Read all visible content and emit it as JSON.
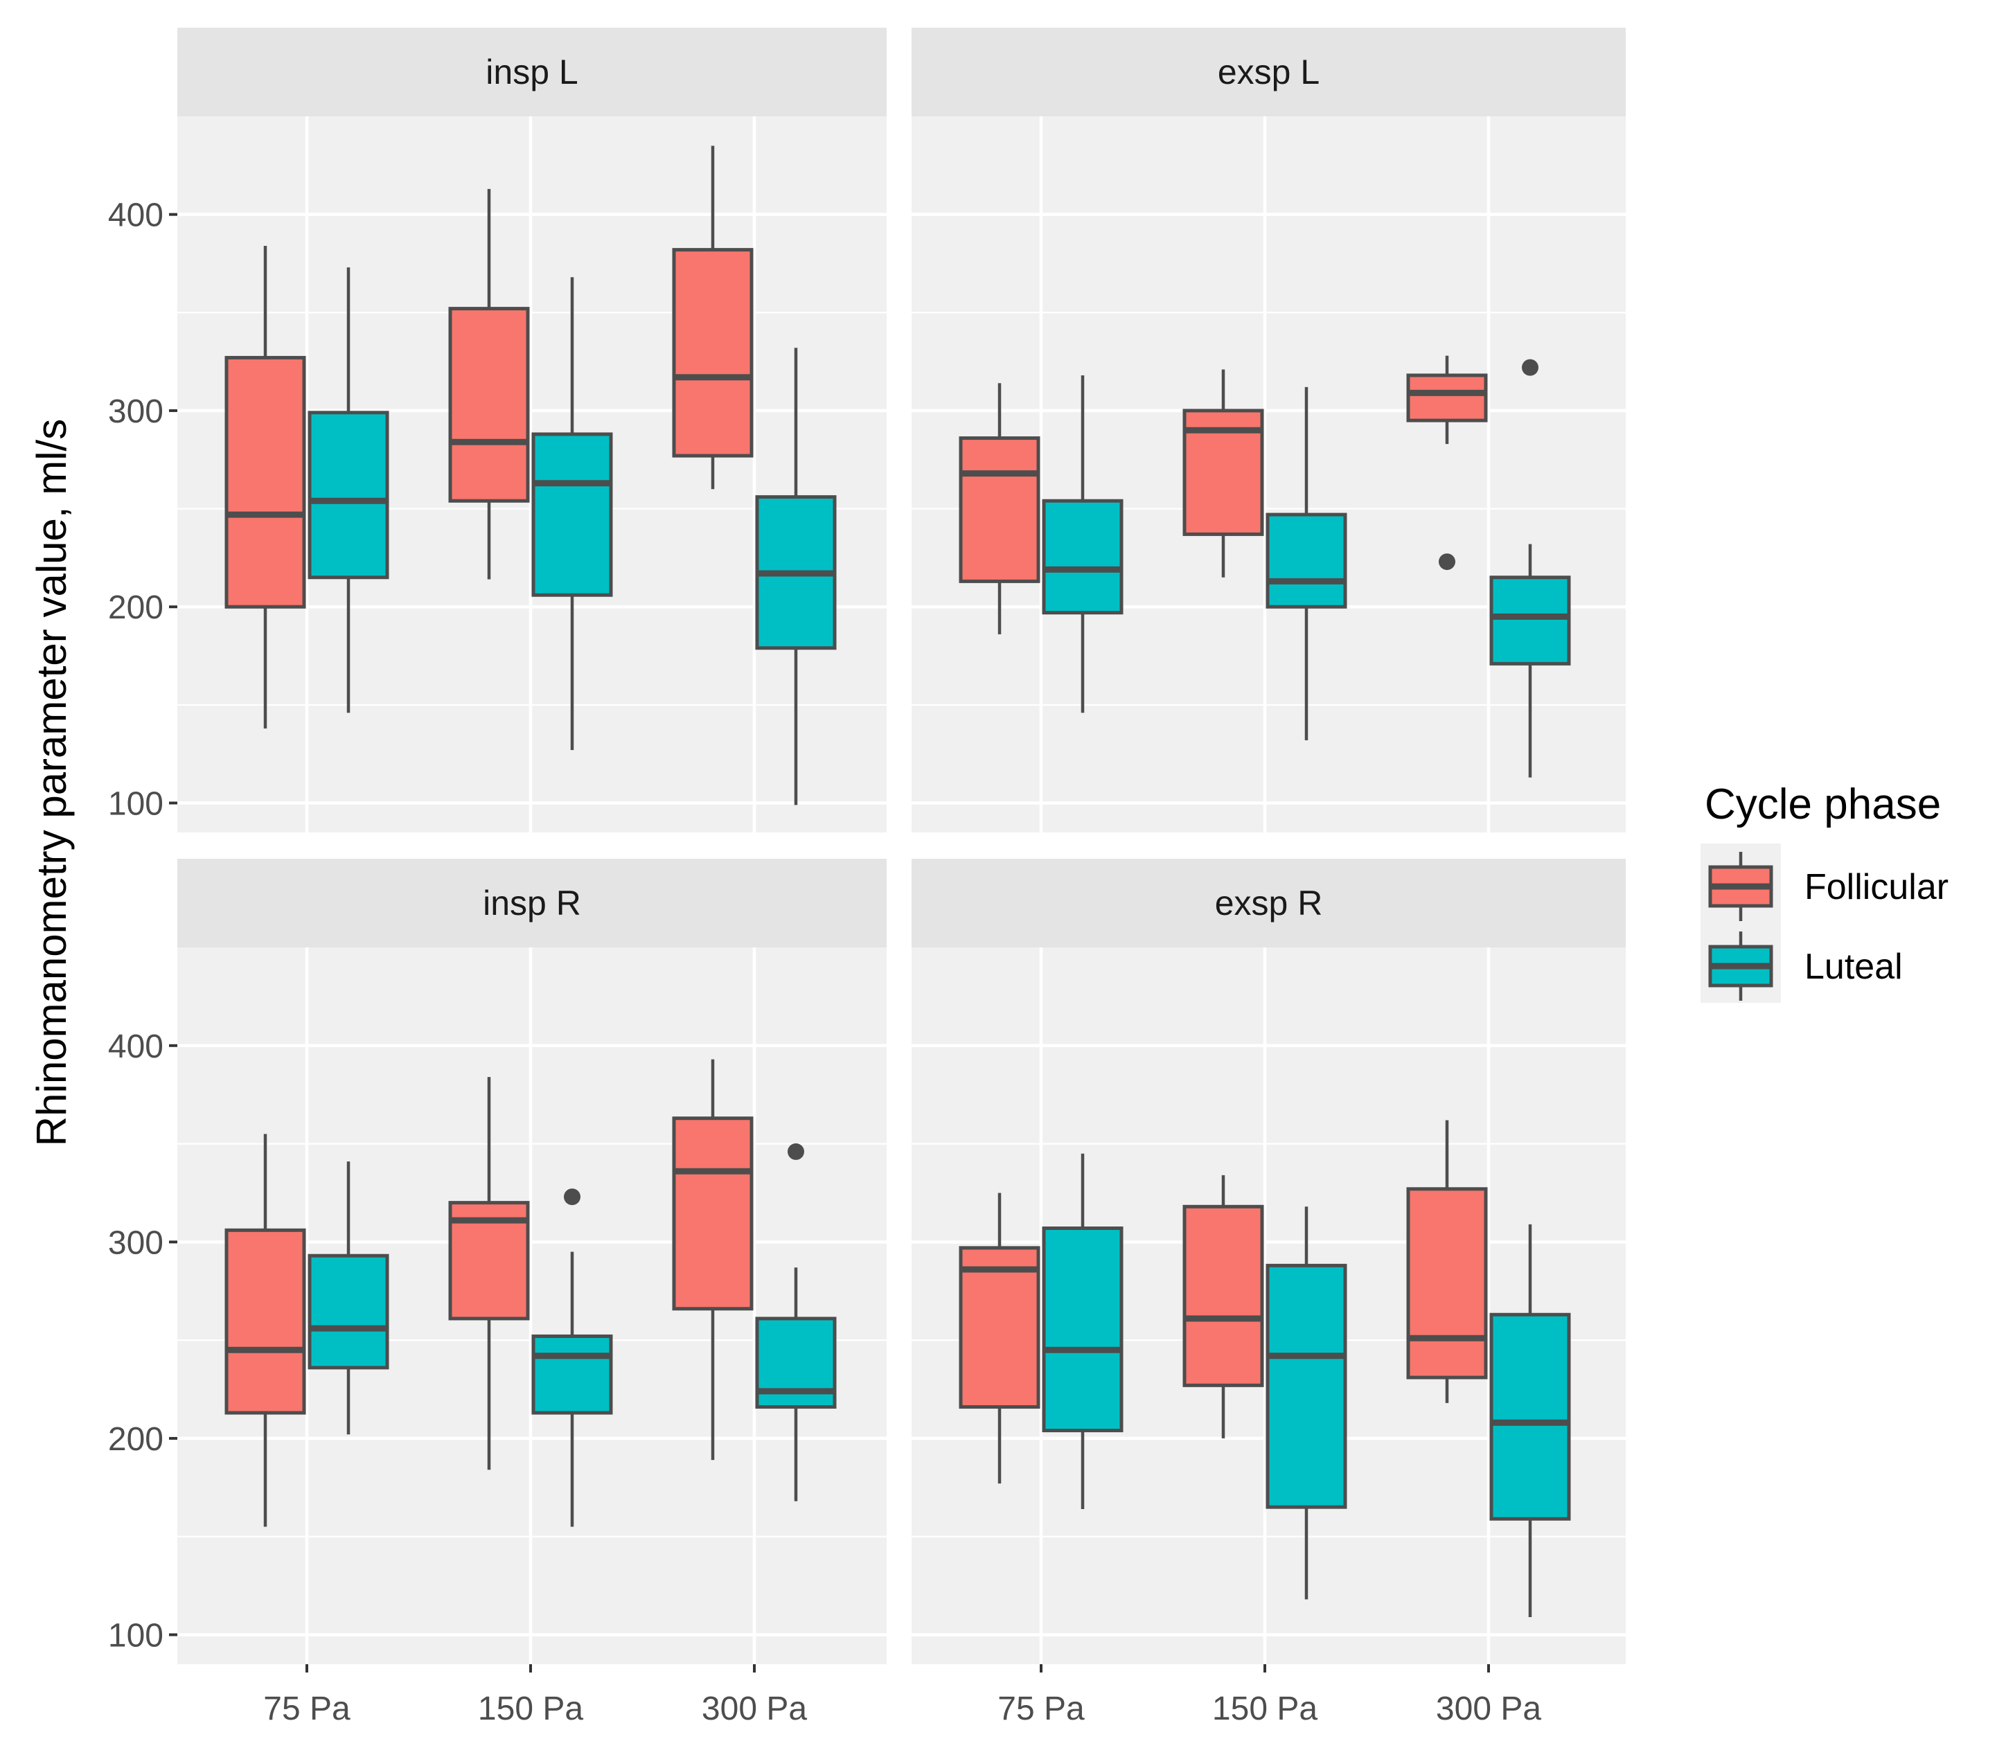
{
  "chart_data": {
    "type": "boxplot",
    "ylabel": "Rhinomanometry parameter value, ml/s",
    "xlabel": "",
    "ylim": [
      85,
      450
    ],
    "yticks": [
      100,
      200,
      300,
      400
    ],
    "categories": [
      "75 Pa",
      "150 Pa",
      "300 Pa"
    ],
    "legend": {
      "title": "Cycle phase",
      "position": "right",
      "entries": [
        {
          "name": "Follicular",
          "color": "#f8766d"
        },
        {
          "name": "Luteal",
          "color": "#00bfc4"
        }
      ]
    },
    "panels": [
      {
        "title": "insp L",
        "groups": [
          {
            "category": "75 Pa",
            "phase": "Follicular",
            "min": 138,
            "q1": 200,
            "median": 247,
            "q3": 327,
            "max": 384,
            "outliers": []
          },
          {
            "category": "75 Pa",
            "phase": "Luteal",
            "min": 146,
            "q1": 215,
            "median": 254,
            "q3": 299,
            "max": 373,
            "outliers": []
          },
          {
            "category": "150 Pa",
            "phase": "Follicular",
            "min": 214,
            "q1": 254,
            "median": 284,
            "q3": 352,
            "max": 413,
            "outliers": []
          },
          {
            "category": "150 Pa",
            "phase": "Luteal",
            "min": 127,
            "q1": 206,
            "median": 263,
            "q3": 288,
            "max": 368,
            "outliers": []
          },
          {
            "category": "300 Pa",
            "phase": "Follicular",
            "min": 260,
            "q1": 277,
            "median": 317,
            "q3": 382,
            "max": 435,
            "outliers": []
          },
          {
            "category": "300 Pa",
            "phase": "Luteal",
            "min": 99,
            "q1": 179,
            "median": 217,
            "q3": 256,
            "max": 332,
            "outliers": []
          }
        ]
      },
      {
        "title": "exsp L",
        "groups": [
          {
            "category": "75 Pa",
            "phase": "Follicular",
            "min": 186,
            "q1": 213,
            "median": 268,
            "q3": 286,
            "max": 314,
            "outliers": []
          },
          {
            "category": "75 Pa",
            "phase": "Luteal",
            "min": 146,
            "q1": 197,
            "median": 219,
            "q3": 254,
            "max": 318,
            "outliers": []
          },
          {
            "category": "150 Pa",
            "phase": "Follicular",
            "min": 215,
            "q1": 237,
            "median": 290,
            "q3": 300,
            "max": 321,
            "outliers": []
          },
          {
            "category": "150 Pa",
            "phase": "Luteal",
            "min": 132,
            "q1": 200,
            "median": 213,
            "q3": 247,
            "max": 312,
            "outliers": []
          },
          {
            "category": "300 Pa",
            "phase": "Follicular",
            "min": 283,
            "q1": 295,
            "median": 309,
            "q3": 318,
            "max": 328,
            "outliers": [
              223
            ]
          },
          {
            "category": "300 Pa",
            "phase": "Luteal",
            "min": 113,
            "q1": 171,
            "median": 195,
            "q3": 215,
            "max": 232,
            "outliers": [
              322
            ]
          }
        ]
      },
      {
        "title": "insp R",
        "groups": [
          {
            "category": "75 Pa",
            "phase": "Follicular",
            "min": 155,
            "q1": 213,
            "median": 245,
            "q3": 306,
            "max": 355,
            "outliers": []
          },
          {
            "category": "75 Pa",
            "phase": "Luteal",
            "min": 202,
            "q1": 236,
            "median": 256,
            "q3": 293,
            "max": 341,
            "outliers": []
          },
          {
            "category": "150 Pa",
            "phase": "Follicular",
            "min": 184,
            "q1": 261,
            "median": 311,
            "q3": 320,
            "max": 384,
            "outliers": []
          },
          {
            "category": "150 Pa",
            "phase": "Luteal",
            "min": 155,
            "q1": 213,
            "median": 242,
            "q3": 252,
            "max": 295,
            "outliers": [
              323
            ]
          },
          {
            "category": "300 Pa",
            "phase": "Follicular",
            "min": 189,
            "q1": 266,
            "median": 336,
            "q3": 363,
            "max": 393,
            "outliers": []
          },
          {
            "category": "300 Pa",
            "phase": "Luteal",
            "min": 168,
            "q1": 216,
            "median": 224,
            "q3": 261,
            "max": 287,
            "outliers": [
              346
            ]
          }
        ]
      },
      {
        "title": "exsp R",
        "groups": [
          {
            "category": "75 Pa",
            "phase": "Follicular",
            "min": 177,
            "q1": 216,
            "median": 286,
            "q3": 297,
            "max": 325,
            "outliers": []
          },
          {
            "category": "75 Pa",
            "phase": "Luteal",
            "min": 164,
            "q1": 204,
            "median": 245,
            "q3": 307,
            "max": 345,
            "outliers": []
          },
          {
            "category": "150 Pa",
            "phase": "Follicular",
            "min": 200,
            "q1": 227,
            "median": 261,
            "q3": 318,
            "max": 334,
            "outliers": []
          },
          {
            "category": "150 Pa",
            "phase": "Luteal",
            "min": 118,
            "q1": 165,
            "median": 242,
            "q3": 288,
            "max": 318,
            "outliers": []
          },
          {
            "category": "300 Pa",
            "phase": "Follicular",
            "min": 218,
            "q1": 231,
            "median": 251,
            "q3": 327,
            "max": 362,
            "outliers": []
          },
          {
            "category": "300 Pa",
            "phase": "Luteal",
            "min": 109,
            "q1": 159,
            "median": 208,
            "q3": 263,
            "max": 309,
            "outliers": []
          }
        ]
      }
    ]
  }
}
